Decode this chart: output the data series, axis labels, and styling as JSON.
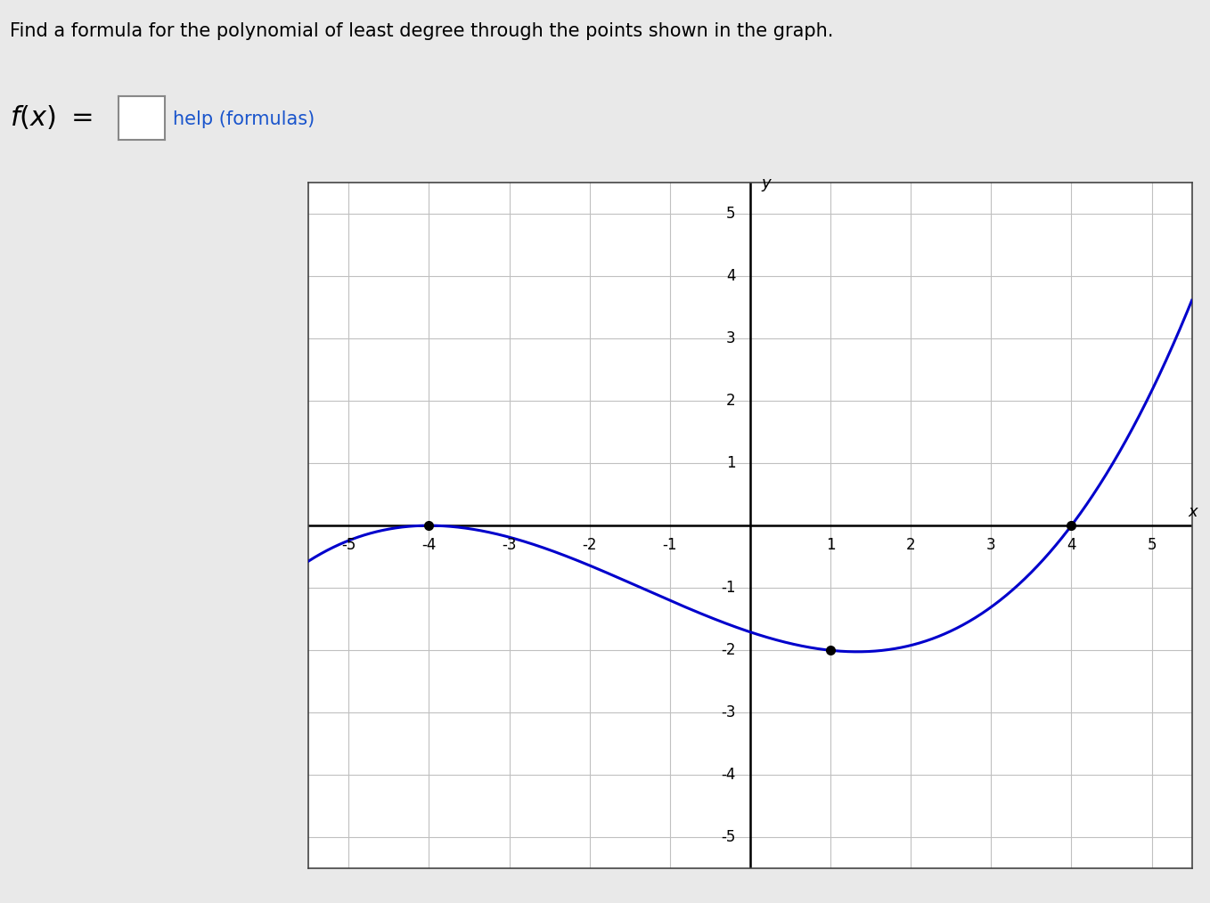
{
  "title_text": "Find a formula for the polynomial of least degree through the points shown in the graph.",
  "help_text": "help (formulas)",
  "background_color": "#e9e9e9",
  "plot_background": "#ffffff",
  "line_color": "#0000cc",
  "point_color": "#000000",
  "line_width": 2.2,
  "xlim": [
    -5.5,
    5.5
  ],
  "ylim": [
    -5.5,
    5.5
  ],
  "marked_points": [
    [
      -4,
      0
    ],
    [
      1,
      -2
    ],
    [
      4,
      0
    ]
  ],
  "point_size": 7,
  "grid_color": "#c0c0c0",
  "axis_color": "#000000",
  "x_label": "x",
  "y_label": "y",
  "poly_a": 0.02666666667,
  "title_fontsize": 15,
  "tick_fontsize": 12,
  "label_fontsize": 13
}
